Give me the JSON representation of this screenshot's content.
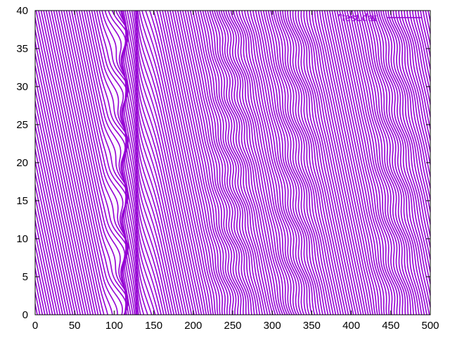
{
  "chart_data": {
    "type": "line",
    "title": "",
    "xlabel": "",
    "ylabel": "",
    "xlim": [
      0,
      500
    ],
    "ylim": [
      0,
      40
    ],
    "x_ticks": [
      "0",
      "50",
      "100",
      "150",
      "200",
      "250",
      "300",
      "350",
      "400",
      "450",
      "500"
    ],
    "y_ticks": [
      "0",
      "5",
      "10",
      "15",
      "20",
      "25",
      "30",
      "35",
      "40"
    ],
    "grid": false,
    "legend_placement": "top-right",
    "series": [
      {
        "name": "\"test.dat\"",
        "color": "#9400d3",
        "description_of_pattern": "dense diagonal traces across the full x range; the lines run left to right with a negative slope and bend near x≈100–140 and in wavy bands near x≈250, 330, 450",
        "trace_slope_dy_dx": -0.49,
        "trace_spacing_x": 3.2,
        "x_start": 0,
        "x_end": 500
      }
    ]
  }
}
